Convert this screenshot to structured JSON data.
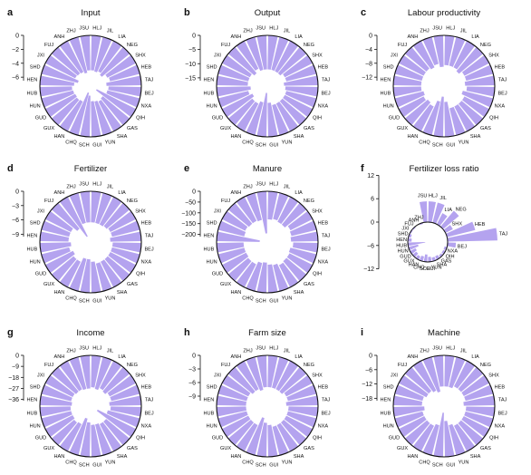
{
  "provinces": [
    "HLJ",
    "JIL",
    "LIA",
    "NEG",
    "SHX",
    "HEB",
    "TAJ",
    "BEJ",
    "NXA",
    "QIH",
    "GAS",
    "SHA",
    "YUN",
    "GUI",
    "SCH",
    "CHQ",
    "HAN",
    "GUX",
    "GUD",
    "HUN",
    "HUB",
    "HEN",
    "SHD",
    "JXI",
    "FUJ",
    "ANH",
    "ZHJ",
    "JSU"
  ],
  "chart_data": [
    {
      "letter": "a",
      "title": "Input",
      "type": "polar-bar",
      "ticks": [
        "0",
        "−2",
        "−4",
        "−6"
      ],
      "range": [
        -6.5,
        0
      ],
      "values": [
        -5.0,
        -5.1,
        -4.9,
        -5.2,
        -4.6,
        -4.4,
        -5.0,
        -4.7,
        -4.8,
        -6.3,
        -5.0,
        -4.8,
        -5.0,
        -5.1,
        -5.9,
        -6.3,
        -4.8,
        -4.7,
        -4.8,
        -4.7,
        -4.6,
        -4.9,
        -5.4,
        -4.8,
        -4.9,
        -5.0,
        -5.3,
        -5.0
      ]
    },
    {
      "letter": "b",
      "title": "Output",
      "type": "polar-bar",
      "ticks": [
        "0",
        "−5",
        "−10",
        "−15"
      ],
      "range": [
        -16,
        0
      ],
      "values": [
        -12,
        -12,
        -12,
        -12,
        -11,
        -11,
        -12,
        -11.5,
        -11,
        -11,
        -11,
        -11,
        -11,
        -12,
        -15.5,
        -12,
        -11,
        -11,
        -12,
        -11,
        -12,
        -11,
        -11,
        -11,
        -12,
        -11,
        -12,
        -12
      ]
    },
    {
      "letter": "c",
      "title": "Labour productivity",
      "type": "polar-bar",
      "ticks": [
        "0",
        "−4",
        "−8",
        "−12"
      ],
      "range": [
        -13,
        0
      ],
      "values": [
        -8.5,
        -8.5,
        -8.5,
        -9,
        -8,
        -8,
        -8.5,
        -8,
        -9,
        -8,
        -8,
        -8,
        -8,
        -10,
        -11.5,
        -10,
        -8,
        -8.5,
        -8,
        -8.5,
        -8,
        -8,
        -8,
        -8,
        -8,
        -8.5,
        -8,
        -9
      ]
    },
    {
      "letter": "d",
      "title": "Fertilizer",
      "type": "polar-bar",
      "ticks": [
        "0",
        "−3",
        "−6",
        "−9"
      ],
      "range": [
        -9.5,
        0
      ],
      "values": [
        -6.5,
        -6.5,
        -6.5,
        -6.3,
        -6,
        -6,
        -6.5,
        -6,
        -6,
        -6,
        -6,
        -6,
        -6,
        -6.5,
        -7,
        -7,
        -6,
        -6,
        -6.5,
        -6,
        -6.5,
        -6,
        -6,
        -6,
        -7,
        -9.3,
        -6.5,
        -6.5
      ]
    },
    {
      "letter": "e",
      "title": "Manure",
      "type": "polar-bar",
      "ticks": [
        "0",
        "−50",
        "−100",
        "−150",
        "−200"
      ],
      "range": [
        -210,
        0
      ],
      "values": [
        -130,
        -125,
        -130,
        -130,
        -115,
        -120,
        -125,
        -115,
        -125,
        -120,
        -120,
        -115,
        -125,
        -130,
        -140,
        -135,
        -120,
        -120,
        -125,
        -125,
        -125,
        -200,
        -125,
        -120,
        -125,
        -125,
        -130,
        -195
      ]
    },
    {
      "letter": "f",
      "title": "Fertilizer loss ratio",
      "type": "polar-bar-signed",
      "ticks": [
        "12",
        "6",
        "0",
        "−6",
        "−12"
      ],
      "range": [
        -12,
        12
      ],
      "values": [
        5,
        5,
        3,
        5,
        2,
        7,
        12,
        2,
        -2,
        -2,
        -2,
        -3,
        -3,
        -4,
        -6,
        -4,
        -3,
        -4,
        -5,
        -8,
        -14,
        -3,
        -2,
        -1,
        -1,
        0,
        -1,
        5
      ]
    },
    {
      "letter": "g",
      "title": "Income",
      "type": "polar-bar",
      "ticks": [
        "0",
        "−9",
        "−18",
        "−27",
        "−36"
      ],
      "range": [
        -37,
        0
      ],
      "values": [
        -26,
        -27,
        -25,
        -26,
        -24,
        -24,
        -26,
        -25,
        -27,
        -35,
        -25,
        -25,
        -26,
        -26,
        -28,
        -31,
        -25,
        -24,
        -25,
        -25,
        -25,
        -26,
        -25,
        -25,
        -26,
        -26,
        -27,
        -27
      ]
    },
    {
      "letter": "h",
      "title": "Farm size",
      "type": "polar-bar",
      "ticks": [
        "0",
        "−3",
        "−6",
        "−9"
      ],
      "range": [
        -10,
        0
      ],
      "values": [
        -7,
        -7,
        -7,
        -7,
        -6.5,
        -6.5,
        -7,
        -6.5,
        -6.5,
        -6.5,
        -6.5,
        -6.5,
        -6.5,
        -7,
        -7.5,
        -8.5,
        -6.5,
        -6.5,
        -6.5,
        -6.5,
        -6.5,
        -6.5,
        -6.5,
        -6.5,
        -7,
        -7,
        -7.5,
        -7
      ]
    },
    {
      "letter": "i",
      "title": "Machine",
      "type": "polar-bar",
      "ticks": [
        "0",
        "−6",
        "−12",
        "−18"
      ],
      "range": [
        -19,
        0
      ],
      "values": [
        -13,
        -13,
        -12,
        -12,
        -12,
        -12,
        -13,
        -12,
        -12,
        -12,
        -12,
        -12,
        -13,
        -15,
        -18.5,
        -13,
        -12,
        -12,
        -12,
        -12,
        -13,
        -12,
        -12,
        -13,
        -13,
        -14,
        -15,
        -13
      ]
    }
  ],
  "colors": {
    "bar": "#b4a3ef",
    "axis": "#111111",
    "text": "#111111"
  }
}
